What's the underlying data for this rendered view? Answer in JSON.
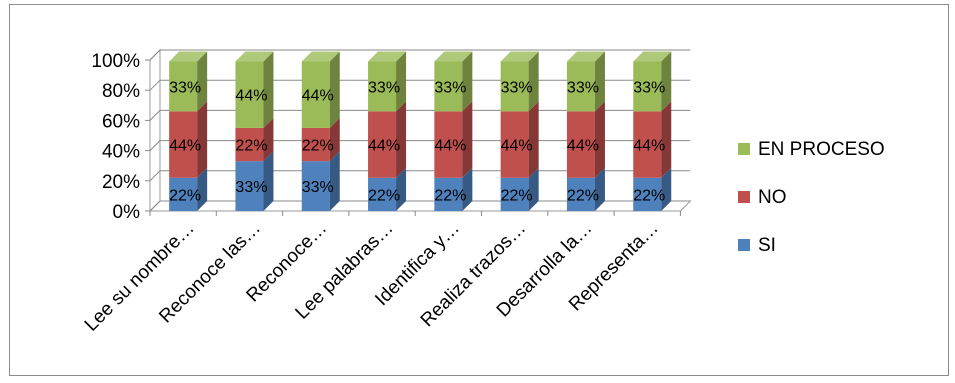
{
  "chart_data": {
    "type": "bar",
    "stacked": true,
    "percent": true,
    "three_d": true,
    "categories": [
      "Lee su nombre…",
      "Reconoce las…",
      "Reconoce…",
      "Lee palabras…",
      "Identifica y…",
      "Realiza trazos…",
      "Desarrolla la…",
      "Representa…"
    ],
    "series": [
      {
        "name": "SI",
        "values": [
          22,
          33,
          33,
          22,
          22,
          22,
          22,
          22
        ],
        "labels": [
          "22%",
          "33%",
          "33%",
          "22%",
          "22%",
          "22%",
          "22%",
          "22%"
        ],
        "color": "#4f81bd"
      },
      {
        "name": "NO",
        "values": [
          44,
          22,
          22,
          44,
          44,
          44,
          44,
          44
        ],
        "labels": [
          "44%",
          "22%",
          "22%",
          "44%",
          "44%",
          "44%",
          "44%",
          "44%"
        ],
        "color": "#c0504d"
      },
      {
        "name": "EN PROCESO",
        "values": [
          33,
          44,
          44,
          33,
          33,
          33,
          33,
          33
        ],
        "labels": [
          "33%",
          "44%",
          "44%",
          "33%",
          "33%",
          "33%",
          "33%",
          "33%"
        ],
        "color": "#9bbb59"
      }
    ],
    "y_ticks": [
      "0%",
      "20%",
      "40%",
      "60%",
      "80%",
      "100%"
    ],
    "ylim": [
      0,
      100
    ],
    "grid": true,
    "legend_position": "right",
    "legend_order": [
      "EN PROCESO",
      "NO",
      "SI"
    ]
  }
}
